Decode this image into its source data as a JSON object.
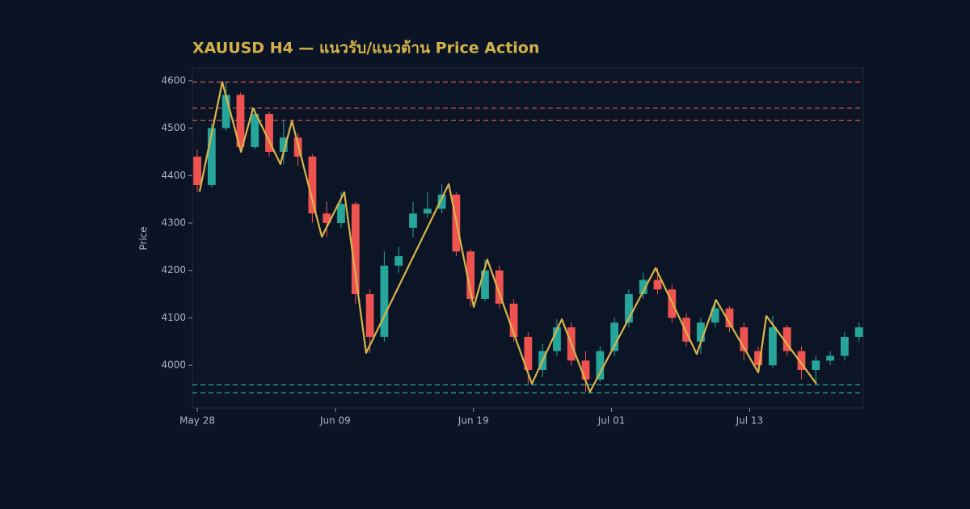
{
  "chart_data": {
    "type": "candlestick",
    "title": "XAUUSD H4 — แนวรับ/แนวต้าน Price Action",
    "ylabel": "Price",
    "x": [
      0,
      5,
      10,
      15,
      20,
      25,
      30,
      35,
      40,
      45,
      50,
      55,
      60,
      65,
      70,
      75,
      80,
      85,
      90,
      95,
      100,
      105,
      110,
      115,
      120,
      125,
      130,
      135,
      140,
      145,
      150,
      155,
      160,
      165,
      170,
      175,
      180,
      185,
      190,
      195,
      200,
      205,
      210,
      215,
      220,
      225,
      230
    ],
    "open": [
      4440,
      4380,
      4500,
      4570,
      4460,
      4530,
      4450,
      4480,
      4440,
      4320,
      4300,
      4340,
      4150,
      4060,
      4210,
      4290,
      4320,
      4330,
      4360,
      4240,
      4140,
      4200,
      4130,
      4060,
      3990,
      4030,
      4080,
      4010,
      3970,
      4030,
      4090,
      4150,
      4180,
      4160,
      4100,
      4050,
      4090,
      4120,
      4080,
      4030,
      4000,
      4080,
      4030,
      3990,
      4010,
      4020,
      4060
    ],
    "high": [
      4455,
      4510,
      4597,
      4575,
      4542,
      4535,
      4515,
      4490,
      4445,
      4345,
      4365,
      4345,
      4160,
      4240,
      4250,
      4345,
      4365,
      4382,
      4365,
      4245,
      4223,
      4210,
      4140,
      4070,
      4045,
      4097,
      4090,
      4030,
      4040,
      4100,
      4160,
      4195,
      4205,
      4170,
      4110,
      4100,
      4138,
      4125,
      4090,
      4040,
      4104,
      4085,
      4040,
      4020,
      4030,
      4070,
      4090
    ],
    "low": [
      4365,
      4375,
      4495,
      4450,
      4455,
      4440,
      4424,
      4420,
      4300,
      4271,
      4290,
      4130,
      4026,
      4050,
      4195,
      4270,
      4310,
      4320,
      4230,
      4123,
      4135,
      4120,
      4050,
      3961,
      3975,
      4020,
      4000,
      3944,
      3965,
      4020,
      4080,
      4140,
      4150,
      4090,
      4040,
      4024,
      4080,
      4070,
      4010,
      3985,
      3995,
      4020,
      3970,
      3961,
      4000,
      4010,
      4050
    ],
    "close": [
      4380,
      4500,
      4570,
      4460,
      4530,
      4450,
      4480,
      4440,
      4320,
      4300,
      4340,
      4150,
      4060,
      4210,
      4230,
      4320,
      4330,
      4360,
      4240,
      4140,
      4200,
      4130,
      4060,
      3990,
      4030,
      4080,
      4010,
      3970,
      4030,
      4090,
      4150,
      4180,
      4160,
      4100,
      4050,
      4090,
      4120,
      4080,
      4030,
      4000,
      4080,
      4030,
      3990,
      4010,
      4020,
      4060,
      4080
    ],
    "up_color": "#26a69a",
    "down_color": "#ef5350",
    "zigzag": {
      "color": "#d9b44a",
      "x": [
        0.8,
        8.7,
        15.2,
        19.4,
        28.9,
        32.9,
        43.3,
        51.1,
        58.7,
        87.4,
        96.1,
        100.8,
        116.3,
        126.7,
        136.5,
        159.3,
        173.6,
        180.3,
        195,
        197.8,
        215.2
      ],
      "values": [
        4366,
        4597,
        4450,
        4542,
        4424,
        4515,
        4271,
        4365,
        4026,
        4382,
        4123,
        4223,
        3961,
        4097,
        3944,
        4205,
        4024,
        4138,
        3985,
        4104,
        3961
      ]
    },
    "resistance": {
      "color": "#c0504d",
      "values": [
        4597,
        4542,
        4516
      ]
    },
    "support": {
      "color": "#2a9d8f",
      "values": [
        3959,
        3942
      ]
    },
    "xlim": [
      -1.7,
      231.5
    ],
    "xticks": [
      {
        "value": 0,
        "label": "May 28"
      },
      {
        "value": 48,
        "label": "Jun 09"
      },
      {
        "value": 96,
        "label": "Jun 19"
      },
      {
        "value": 144,
        "label": "Jul 01"
      },
      {
        "value": 192,
        "label": "Jul 13"
      }
    ],
    "ylim": [
      3910,
      4627
    ],
    "yticks": [
      4000,
      4100,
      4200,
      4300,
      4400,
      4500,
      4600
    ]
  }
}
